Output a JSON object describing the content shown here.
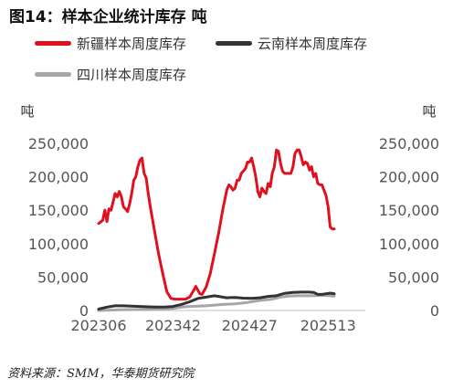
{
  "title": "图14：样本企业统计库存 吨",
  "source": "资料来源：SMM，华泰期货研究院",
  "colors": {
    "xinjiang": "#e0101e",
    "yunnan": "#333333",
    "sichuan": "#a6a6a6",
    "axis": "#bfbfbf",
    "tick": "#555555"
  },
  "chart_data": {
    "type": "line",
    "ylabel_left": "吨",
    "ylabel_right": "吨",
    "ylim": [
      0,
      250000
    ],
    "yticks": [
      "0",
      "50,000",
      "100,000",
      "150,000",
      "200,000",
      "250,000"
    ],
    "ytick_values": [
      0,
      50000,
      100000,
      150000,
      200000,
      250000
    ],
    "xticks": [
      "202306",
      "202342",
      "202427",
      "202513"
    ],
    "xtick_index": [
      0,
      36,
      73,
      111
    ],
    "x_count": 130,
    "legend_placement": "top-left",
    "series": [
      {
        "name": "新疆样本周度库存",
        "color": "#e0101e",
        "points": [
          [
            0,
            130000
          ],
          [
            2,
            135000
          ],
          [
            3,
            150000
          ],
          [
            4,
            133000
          ],
          [
            5,
            152000
          ],
          [
            6,
            150000
          ],
          [
            8,
            175000
          ],
          [
            9,
            170000
          ],
          [
            10,
            178000
          ],
          [
            11,
            170000
          ],
          [
            12,
            155000
          ],
          [
            13,
            152000
          ],
          [
            14,
            148000
          ],
          [
            15,
            160000
          ],
          [
            16,
            175000
          ],
          [
            17,
            195000
          ],
          [
            18,
            200000
          ],
          [
            19,
            215000
          ],
          [
            20,
            225000
          ],
          [
            21,
            228000
          ],
          [
            22,
            205000
          ],
          [
            23,
            198000
          ],
          [
            24,
            175000
          ],
          [
            25,
            155000
          ],
          [
            27,
            120000
          ],
          [
            29,
            85000
          ],
          [
            31,
            55000
          ],
          [
            33,
            28000
          ],
          [
            35,
            18000
          ],
          [
            37,
            17000
          ],
          [
            40,
            17000
          ],
          [
            42,
            17000
          ],
          [
            44,
            20000
          ],
          [
            46,
            30000
          ],
          [
            47,
            36000
          ],
          [
            48,
            30000
          ],
          [
            49,
            25000
          ],
          [
            50,
            24000
          ],
          [
            52,
            35000
          ],
          [
            54,
            55000
          ],
          [
            56,
            85000
          ],
          [
            58,
            115000
          ],
          [
            60,
            150000
          ],
          [
            62,
            180000
          ],
          [
            63,
            188000
          ],
          [
            64,
            185000
          ],
          [
            65,
            180000
          ],
          [
            66,
            183000
          ],
          [
            67,
            195000
          ],
          [
            68,
            195000
          ],
          [
            69,
            205000
          ],
          [
            71,
            212000
          ],
          [
            72,
            222000
          ],
          [
            73,
            222000
          ],
          [
            74,
            228000
          ],
          [
            75,
            215000
          ],
          [
            76,
            200000
          ],
          [
            77,
            178000
          ],
          [
            78,
            170000
          ],
          [
            79,
            183000
          ],
          [
            80,
            178000
          ],
          [
            81,
            175000
          ],
          [
            82,
            190000
          ],
          [
            83,
            185000
          ],
          [
            84,
            205000
          ],
          [
            85,
            215000
          ],
          [
            86,
            240000
          ],
          [
            87,
            238000
          ],
          [
            88,
            220000
          ],
          [
            89,
            208000
          ],
          [
            90,
            205000
          ],
          [
            91,
            205000
          ],
          [
            93,
            205000
          ],
          [
            94,
            215000
          ],
          [
            95,
            235000
          ],
          [
            96,
            240000
          ],
          [
            97,
            240000
          ],
          [
            98,
            230000
          ],
          [
            99,
            218000
          ],
          [
            100,
            222000
          ],
          [
            101,
            220000
          ],
          [
            102,
            210000
          ],
          [
            103,
            215000
          ],
          [
            104,
            200000
          ],
          [
            105,
            205000
          ],
          [
            106,
            190000
          ],
          [
            107,
            188000
          ],
          [
            108,
            188000
          ],
          [
            109,
            180000
          ],
          [
            110,
            172000
          ],
          [
            111,
            155000
          ],
          [
            112,
            125000
          ],
          [
            113,
            122000
          ],
          [
            114,
            122000
          ]
        ]
      },
      {
        "name": "云南样本周度库存",
        "color": "#333333",
        "points": [
          [
            0,
            2000
          ],
          [
            4,
            5000
          ],
          [
            8,
            7000
          ],
          [
            12,
            7000
          ],
          [
            16,
            6500
          ],
          [
            20,
            6000
          ],
          [
            24,
            5500
          ],
          [
            28,
            5000
          ],
          [
            32,
            5000
          ],
          [
            36,
            6000
          ],
          [
            40,
            9000
          ],
          [
            44,
            13000
          ],
          [
            48,
            18000
          ],
          [
            52,
            20000
          ],
          [
            56,
            22000
          ],
          [
            58,
            21000
          ],
          [
            60,
            20000
          ],
          [
            62,
            19000
          ],
          [
            66,
            19500
          ],
          [
            70,
            18500
          ],
          [
            74,
            18000
          ],
          [
            78,
            19000
          ],
          [
            82,
            21000
          ],
          [
            86,
            22000
          ],
          [
            88,
            24000
          ],
          [
            90,
            25500
          ],
          [
            94,
            27000
          ],
          [
            98,
            27500
          ],
          [
            102,
            27500
          ],
          [
            104,
            27000
          ],
          [
            106,
            24000
          ],
          [
            108,
            24000
          ],
          [
            110,
            25000
          ],
          [
            112,
            26000
          ],
          [
            114,
            25000
          ]
        ]
      },
      {
        "name": "四川样本周度库存",
        "color": "#a6a6a6",
        "points": [
          [
            0,
            0
          ],
          [
            10,
            1000
          ],
          [
            20,
            1500
          ],
          [
            30,
            2000
          ],
          [
            36,
            3000
          ],
          [
            40,
            5000
          ],
          [
            44,
            6000
          ],
          [
            48,
            6500
          ],
          [
            52,
            7000
          ],
          [
            56,
            8000
          ],
          [
            60,
            9000
          ],
          [
            66,
            10000
          ],
          [
            72,
            12000
          ],
          [
            78,
            15000
          ],
          [
            84,
            17000
          ],
          [
            88,
            20000
          ],
          [
            92,
            21500
          ],
          [
            96,
            22000
          ],
          [
            100,
            22000
          ],
          [
            104,
            22000
          ],
          [
            108,
            22500
          ],
          [
            112,
            22000
          ],
          [
            114,
            21500
          ]
        ]
      }
    ]
  }
}
